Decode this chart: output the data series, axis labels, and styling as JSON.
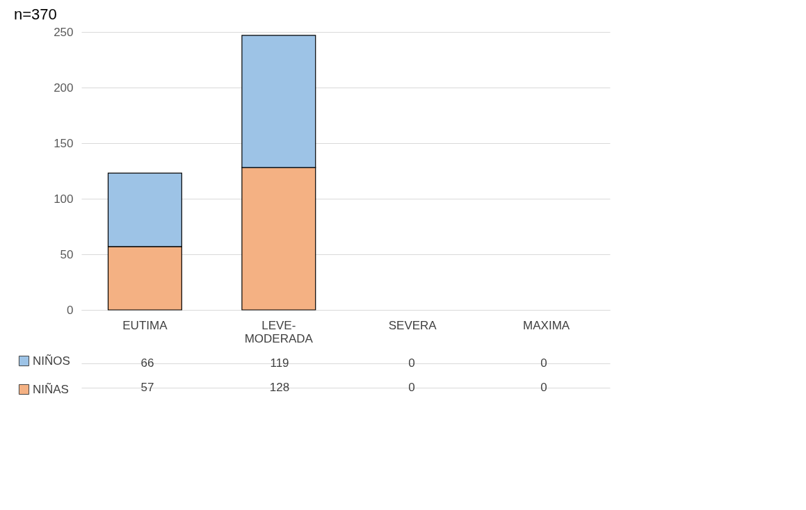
{
  "chart_data": {
    "type": "bar",
    "stacked": true,
    "categories": [
      "EUTIMA",
      "LEVE-MODERADA",
      "SEVERA",
      "MAXIMA"
    ],
    "series": [
      {
        "name": "NIÑAS",
        "color": "#f4b183",
        "values": [
          57,
          128,
          0,
          0
        ]
      },
      {
        "name": "NIÑOS",
        "color": "#9dc3e6",
        "values": [
          66,
          119,
          0,
          0
        ]
      }
    ],
    "ylim": [
      0,
      250
    ],
    "yticks": [
      0,
      50,
      100,
      150,
      200,
      250
    ],
    "grid": "y",
    "legend": "bottom left",
    "data_labels": true,
    "annotations": [
      "n=370"
    ]
  }
}
